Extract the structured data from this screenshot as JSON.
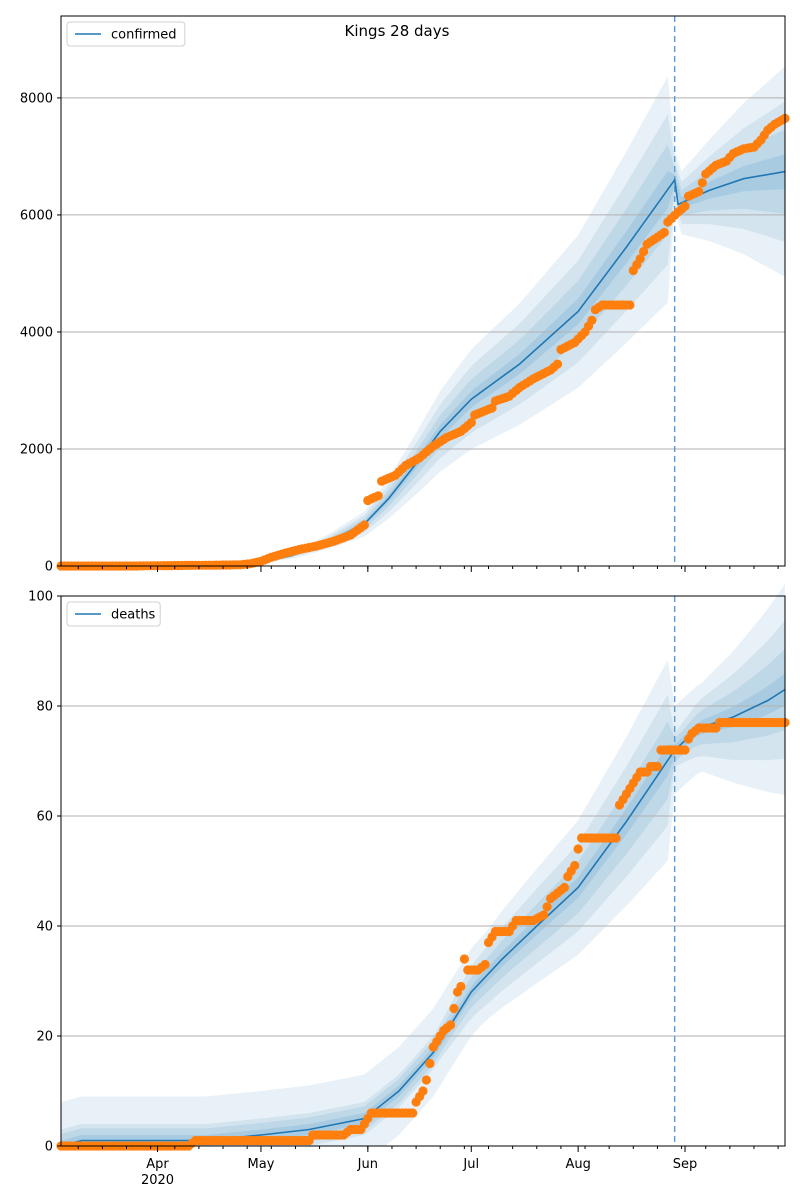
{
  "figure": {
    "title": "Kings 28 days"
  },
  "colors": {
    "model_line": "#1f77b4",
    "observed_points": "#ff7f0e",
    "band_fill": "#1f77b4",
    "grid": "#b0b0b0",
    "forecast_marker": "#5b9bd5"
  },
  "chart_data": [
    {
      "type": "line",
      "panel": "top",
      "title": "Kings 28 days",
      "xlabel": "",
      "ylabel": "",
      "x_type": "date",
      "xlim": [
        "2020-03-04",
        "2020-09-30"
      ],
      "ylim": [
        0,
        9400
      ],
      "grid": "horizontal",
      "legend_placement": "top-left",
      "y_ticks": [
        0,
        2000,
        4000,
        6000,
        8000
      ],
      "x_tick_labels": [
        {
          "date": "2020-04-01",
          "label": "Apr",
          "sublabel": "2020"
        },
        {
          "date": "2020-05-01",
          "label": "May",
          "sublabel": ""
        },
        {
          "date": "2020-06-01",
          "label": "Jun",
          "sublabel": ""
        },
        {
          "date": "2020-07-01",
          "label": "Jul",
          "sublabel": ""
        },
        {
          "date": "2020-08-01",
          "label": "Aug",
          "sublabel": ""
        },
        {
          "date": "2020-09-01",
          "label": "Sep",
          "sublabel": ""
        }
      ],
      "forecast_start": "2020-08-29",
      "series": [
        {
          "name": "confirmed",
          "kind": "model-median",
          "points": [
            [
              "2020-03-04",
              0
            ],
            [
              "2020-04-01",
              3
            ],
            [
              "2020-04-15",
              10
            ],
            [
              "2020-05-01",
              60
            ],
            [
              "2020-05-10",
              180
            ],
            [
              "2020-05-20",
              400
            ],
            [
              "2020-05-31",
              720
            ],
            [
              "2020-06-07",
              1150
            ],
            [
              "2020-06-15",
              1750
            ],
            [
              "2020-06-22",
              2300
            ],
            [
              "2020-07-01",
              2850
            ],
            [
              "2020-07-15",
              3450
            ],
            [
              "2020-08-01",
              4350
            ],
            [
              "2020-08-15",
              5450
            ],
            [
              "2020-08-29",
              6600
            ],
            [
              "2020-08-30",
              6180
            ],
            [
              "2020-09-08",
              6420
            ],
            [
              "2020-09-18",
              6620
            ],
            [
              "2020-09-30",
              6740
            ]
          ]
        },
        {
          "name": "",
          "kind": "observed",
          "points": [
            [
              "2020-03-04",
              0
            ],
            [
              "2020-03-18",
              0
            ],
            [
              "2020-03-25",
              0
            ],
            [
              "2020-04-01",
              5
            ],
            [
              "2020-04-10",
              10
            ],
            [
              "2020-04-18",
              15
            ],
            [
              "2020-04-25",
              20
            ],
            [
              "2020-04-28",
              40
            ],
            [
              "2020-05-01",
              80
            ],
            [
              "2020-05-04",
              150
            ],
            [
              "2020-05-08",
              220
            ],
            [
              "2020-05-12",
              280
            ],
            [
              "2020-05-17",
              340
            ],
            [
              "2020-05-22",
              420
            ],
            [
              "2020-05-27",
              530
            ],
            [
              "2020-05-31",
              700
            ],
            [
              "2020-06-01",
              1120
            ],
            [
              "2020-06-04",
              1200
            ],
            [
              "2020-06-05",
              1450
            ],
            [
              "2020-06-09",
              1550
            ],
            [
              "2020-06-12",
              1720
            ],
            [
              "2020-06-16",
              1850
            ],
            [
              "2020-06-20",
              2050
            ],
            [
              "2020-06-24",
              2200
            ],
            [
              "2020-06-28",
              2300
            ],
            [
              "2020-07-01",
              2450
            ],
            [
              "2020-07-02",
              2580
            ],
            [
              "2020-07-07",
              2700
            ],
            [
              "2020-07-08",
              2820
            ],
            [
              "2020-07-12",
              2900
            ],
            [
              "2020-07-15",
              3050
            ],
            [
              "2020-07-19",
              3200
            ],
            [
              "2020-07-24",
              3350
            ],
            [
              "2020-07-26",
              3450
            ],
            [
              "2020-07-27",
              3700
            ],
            [
              "2020-07-31",
              3820
            ],
            [
              "2020-08-03",
              4000
            ],
            [
              "2020-08-05",
              4200
            ],
            [
              "2020-08-06",
              4380
            ],
            [
              "2020-08-08",
              4460
            ],
            [
              "2020-08-12",
              4460
            ],
            [
              "2020-08-16",
              4460
            ],
            [
              "2020-08-17",
              5050
            ],
            [
              "2020-08-19",
              5250
            ],
            [
              "2020-08-21",
              5500
            ],
            [
              "2020-08-24",
              5620
            ],
            [
              "2020-08-26",
              5700
            ],
            [
              "2020-08-27",
              5880
            ],
            [
              "2020-08-30",
              6050
            ],
            [
              "2020-09-01",
              6150
            ],
            [
              "2020-09-02",
              6320
            ],
            [
              "2020-09-05",
              6400
            ],
            [
              "2020-09-07",
              6700
            ],
            [
              "2020-09-10",
              6850
            ],
            [
              "2020-09-13",
              6920
            ],
            [
              "2020-09-15",
              7050
            ],
            [
              "2020-09-18",
              7130
            ],
            [
              "2020-09-21",
              7160
            ],
            [
              "2020-09-23",
              7280
            ],
            [
              "2020-09-25",
              7450
            ],
            [
              "2020-09-27",
              7550
            ],
            [
              "2020-09-30",
              7650
            ]
          ]
        }
      ]
    },
    {
      "type": "line",
      "panel": "bottom",
      "title": "",
      "xlabel": "",
      "ylabel": "",
      "x_type": "date",
      "xlim": [
        "2020-03-04",
        "2020-09-30"
      ],
      "ylim": [
        0,
        100
      ],
      "grid": "horizontal",
      "legend_placement": "top-left",
      "y_ticks": [
        0,
        20,
        40,
        60,
        80,
        100
      ],
      "x_tick_labels": [
        {
          "date": "2020-04-01",
          "label": "Apr",
          "sublabel": "2020"
        },
        {
          "date": "2020-05-01",
          "label": "May",
          "sublabel": ""
        },
        {
          "date": "2020-06-01",
          "label": "Jun",
          "sublabel": ""
        },
        {
          "date": "2020-07-01",
          "label": "Jul",
          "sublabel": ""
        },
        {
          "date": "2020-08-01",
          "label": "Aug",
          "sublabel": ""
        },
        {
          "date": "2020-09-01",
          "label": "Sep",
          "sublabel": ""
        }
      ],
      "forecast_start": "2020-08-29",
      "series": [
        {
          "name": "deaths",
          "kind": "model-median",
          "points": [
            [
              "2020-03-04",
              0
            ],
            [
              "2020-03-10",
              1
            ],
            [
              "2020-04-15",
              1
            ],
            [
              "2020-05-01",
              2
            ],
            [
              "2020-05-15",
              3
            ],
            [
              "2020-05-31",
              5
            ],
            [
              "2020-06-10",
              10
            ],
            [
              "2020-06-20",
              17
            ],
            [
              "2020-07-01",
              28
            ],
            [
              "2020-07-10",
              34
            ],
            [
              "2020-07-20",
              40
            ],
            [
              "2020-08-01",
              47
            ],
            [
              "2020-08-15",
              59
            ],
            [
              "2020-08-29",
              72
            ],
            [
              "2020-09-05",
              76
            ],
            [
              "2020-09-15",
              78
            ],
            [
              "2020-09-25",
              81
            ],
            [
              "2020-09-30",
              83
            ]
          ]
        },
        {
          "name": "",
          "kind": "observed",
          "points": [
            [
              "2020-03-04",
              0
            ],
            [
              "2020-03-20",
              0
            ],
            [
              "2020-04-10",
              0
            ],
            [
              "2020-04-12",
              1
            ],
            [
              "2020-04-25",
              1
            ],
            [
              "2020-05-15",
              1
            ],
            [
              "2020-05-16",
              2
            ],
            [
              "2020-05-25",
              2
            ],
            [
              "2020-05-27",
              3
            ],
            [
              "2020-05-30",
              3
            ],
            [
              "2020-05-31",
              4
            ],
            [
              "2020-06-01",
              5
            ],
            [
              "2020-06-02",
              6
            ],
            [
              "2020-06-10",
              6
            ],
            [
              "2020-06-14",
              6
            ],
            [
              "2020-06-15",
              8
            ],
            [
              "2020-06-16",
              9
            ],
            [
              "2020-06-17",
              10
            ],
            [
              "2020-06-18",
              12
            ],
            [
              "2020-06-19",
              15
            ],
            [
              "2020-06-20",
              18
            ],
            [
              "2020-06-22",
              20
            ],
            [
              "2020-06-23",
              21
            ],
            [
              "2020-06-25",
              22
            ],
            [
              "2020-06-27",
              28
            ],
            [
              "2020-06-28",
              29
            ],
            [
              "2020-06-29",
              34
            ],
            [
              "2020-06-30",
              32
            ],
            [
              "2020-07-03",
              32
            ],
            [
              "2020-07-05",
              33
            ],
            [
              "2020-07-06",
              37
            ],
            [
              "2020-07-08",
              39
            ],
            [
              "2020-07-12",
              39
            ],
            [
              "2020-07-14",
              41
            ],
            [
              "2020-07-19",
              41
            ],
            [
              "2020-07-22",
              42
            ],
            [
              "2020-07-24",
              45
            ],
            [
              "2020-07-26",
              46
            ],
            [
              "2020-07-28",
              47
            ],
            [
              "2020-07-29",
              49
            ],
            [
              "2020-07-31",
              51
            ],
            [
              "2020-08-01",
              54
            ],
            [
              "2020-08-02",
              56
            ],
            [
              "2020-08-10",
              56
            ],
            [
              "2020-08-12",
              56
            ],
            [
              "2020-08-13",
              62
            ],
            [
              "2020-08-15",
              64
            ],
            [
              "2020-08-17",
              66
            ],
            [
              "2020-08-19",
              68
            ],
            [
              "2020-08-21",
              68
            ],
            [
              "2020-08-22",
              69
            ],
            [
              "2020-08-24",
              69
            ],
            [
              "2020-08-25",
              72
            ],
            [
              "2020-08-29",
              72
            ],
            [
              "2020-09-01",
              72
            ],
            [
              "2020-09-02",
              74
            ],
            [
              "2020-09-03",
              75
            ],
            [
              "2020-09-05",
              76
            ],
            [
              "2020-09-10",
              76
            ],
            [
              "2020-09-11",
              77
            ],
            [
              "2020-09-20",
              77
            ],
            [
              "2020-09-30",
              77
            ]
          ]
        }
      ]
    }
  ]
}
